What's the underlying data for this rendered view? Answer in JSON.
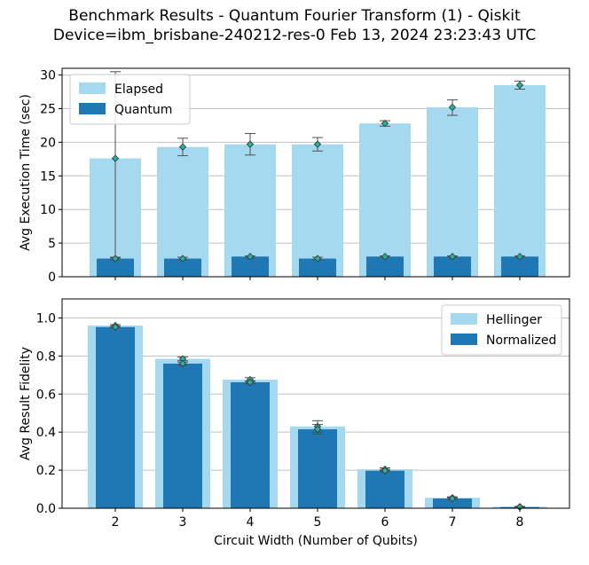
{
  "title_line1": "Benchmark Results - Quantum Fourier Transform (1) - Qiskit",
  "title_line2": "Device=ibm_brisbane-240212-res-0  Feb 13, 2024 23:23:43 UTC",
  "colors": {
    "light_bar": "#a5d9f0",
    "dark_bar": "#1f77b4",
    "marker": "#2ab0a0",
    "grid": "#c0c0c0"
  },
  "chart_data": [
    {
      "type": "bar",
      "xlabel": "",
      "ylabel": "Avg Execution Time (sec)",
      "ylim": [
        0,
        31
      ],
      "yticks": [
        0,
        5,
        10,
        15,
        20,
        25,
        30
      ],
      "grid": "horizontal",
      "legend_position": "top-left",
      "categories": [
        "2",
        "3",
        "4",
        "5",
        "6",
        "7",
        "8"
      ],
      "series": [
        {
          "name": "Elapsed",
          "values": [
            17.6,
            19.3,
            19.7,
            19.7,
            22.8,
            25.2,
            28.5
          ],
          "err_low": [
            2.8,
            18.0,
            18.1,
            18.7,
            22.4,
            24.0,
            27.9
          ],
          "err_high": [
            30.5,
            20.6,
            21.3,
            20.7,
            23.2,
            26.3,
            29.1
          ]
        },
        {
          "name": "Quantum",
          "values": [
            2.7,
            2.7,
            3.0,
            2.7,
            3.0,
            3.0,
            3.0
          ],
          "err_low": [
            2.5,
            2.5,
            2.8,
            2.5,
            2.9,
            2.9,
            2.9
          ],
          "err_high": [
            2.9,
            2.9,
            3.1,
            2.9,
            3.1,
            3.1,
            3.1
          ]
        }
      ]
    },
    {
      "type": "bar",
      "xlabel": "Circuit Width (Number of Qubits)",
      "ylabel": "Avg Result Fidelity",
      "ylim": [
        0,
        1.1
      ],
      "yticks": [
        "0.0",
        "0.2",
        "0.4",
        "0.6",
        "0.8",
        "1.0"
      ],
      "grid": "horizontal",
      "legend_position": "top-right",
      "categories": [
        "2",
        "3",
        "4",
        "5",
        "6",
        "7",
        "8"
      ],
      "series": [
        {
          "name": "Hellinger",
          "values": [
            0.96,
            0.785,
            0.676,
            0.43,
            0.205,
            0.055,
            0.008
          ],
          "err_low": [
            0.955,
            0.775,
            0.666,
            0.4,
            0.198,
            0.05,
            0.006
          ],
          "err_high": [
            0.965,
            0.795,
            0.686,
            0.46,
            0.212,
            0.06,
            0.01
          ]
        },
        {
          "name": "Normalized",
          "values": [
            0.952,
            0.76,
            0.662,
            0.415,
            0.197,
            0.051,
            0.006
          ],
          "err_low": [
            0.947,
            0.752,
            0.655,
            0.39,
            0.19,
            0.046,
            0.004
          ],
          "err_high": [
            0.957,
            0.768,
            0.669,
            0.44,
            0.204,
            0.056,
            0.008
          ]
        }
      ]
    }
  ]
}
